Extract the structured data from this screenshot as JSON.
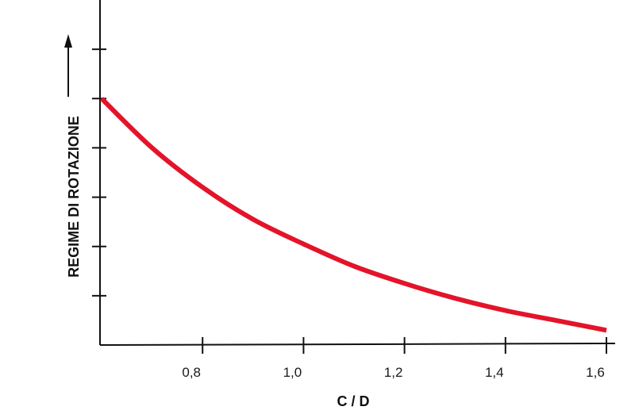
{
  "chart_data": {
    "type": "line",
    "xlabel": "C / D",
    "ylabel": "REGIME DI ROTAZIONE",
    "xlim": [
      0.6,
      1.6
    ],
    "ylim": [
      0,
      7
    ],
    "x_ticks": [
      0.8,
      1.0,
      1.2,
      1.4,
      1.6
    ],
    "x_tick_labels": [
      "0,8",
      "1,0",
      "1,2",
      "1,4",
      "1,6"
    ],
    "y_ticks": [
      1,
      2,
      3,
      4,
      5,
      6
    ],
    "y_tick_labels": [
      "",
      "",
      "",
      "",
      "",
      ""
    ],
    "grid": false,
    "series": [
      {
        "color": "#e3142a",
        "x": [
          0.6,
          0.7,
          0.8,
          0.9,
          1.0,
          1.1,
          1.2,
          1.3,
          1.4,
          1.5,
          1.6
        ],
        "y": [
          5.0,
          4.0,
          3.2,
          2.55,
          2.05,
          1.6,
          1.25,
          0.95,
          0.7,
          0.5,
          0.3
        ]
      }
    ]
  }
}
